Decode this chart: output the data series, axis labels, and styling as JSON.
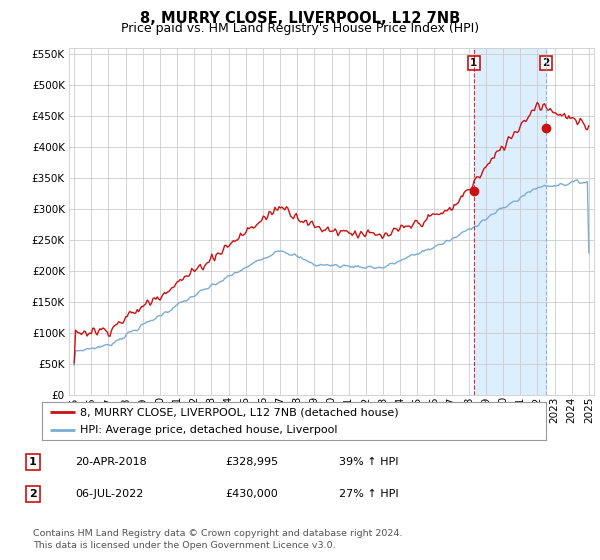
{
  "title": "8, MURRY CLOSE, LIVERPOOL, L12 7NB",
  "subtitle": "Price paid vs. HM Land Registry's House Price Index (HPI)",
  "ylim": [
    0,
    560000
  ],
  "yticks": [
    0,
    50000,
    100000,
    150000,
    200000,
    250000,
    300000,
    350000,
    400000,
    450000,
    500000,
    550000
  ],
  "hpi_color": "#7aadd4",
  "price_color": "#cc1111",
  "sale1_x": 2018.3,
  "sale2_x": 2022.5,
  "sale1_price": 328995,
  "sale2_price": 430000,
  "legend_line1": "8, MURRY CLOSE, LIVERPOOL, L12 7NB (detached house)",
  "legend_line2": "HPI: Average price, detached house, Liverpool",
  "table_row1": [
    "1",
    "20-APR-2018",
    "£328,995",
    "39% ↑ HPI"
  ],
  "table_row2": [
    "2",
    "06-JUL-2022",
    "£430,000",
    "27% ↑ HPI"
  ],
  "footnote": "Contains HM Land Registry data © Crown copyright and database right 2024.\nThis data is licensed under the Open Government Licence v3.0.",
  "bg_color": "#ffffff",
  "grid_color": "#cccccc",
  "shade_color": "#ddeeff",
  "title_fontsize": 10.5,
  "subtitle_fontsize": 9,
  "tick_fontsize": 7.5
}
